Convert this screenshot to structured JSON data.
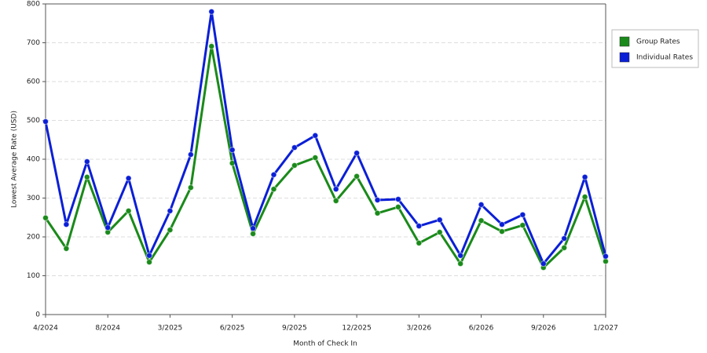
{
  "chart_data": {
    "type": "line",
    "x_label": "Month of Check In",
    "y_label": "Lowest Average Rate (USD)",
    "categories": [
      "4/2024",
      null,
      null,
      "8/2024",
      null,
      null,
      "3/2025",
      null,
      null,
      "6/2025",
      null,
      null,
      "9/2025",
      null,
      null,
      "12/2025",
      null,
      null,
      "3/2026",
      null,
      null,
      "6/2026",
      null,
      null,
      "9/2026",
      null,
      null,
      "1/2027"
    ],
    "series": [
      {
        "name": "Group Rates",
        "color": "#1a8a1a",
        "values": [
          249,
          170,
          354,
          212,
          267,
          135,
          218,
          327,
          691,
          390,
          208,
          323,
          384,
          404,
          293,
          356,
          261,
          277,
          184,
          212,
          131,
          242,
          214,
          230,
          121,
          172,
          303,
          137
        ]
      },
      {
        "name": "Individual Rates",
        "color": "#0b1fd6",
        "values": [
          497,
          232,
          394,
          224,
          351,
          152,
          267,
          412,
          780,
          424,
          222,
          360,
          430,
          461,
          323,
          416,
          295,
          297,
          228,
          244,
          152,
          283,
          232,
          257,
          131,
          196,
          354,
          150
        ]
      }
    ],
    "ylim": [
      0,
      800
    ],
    "yticks": [
      0,
      100,
      200,
      300,
      400,
      500,
      600,
      700,
      800
    ],
    "grid": true,
    "legend": "right"
  }
}
